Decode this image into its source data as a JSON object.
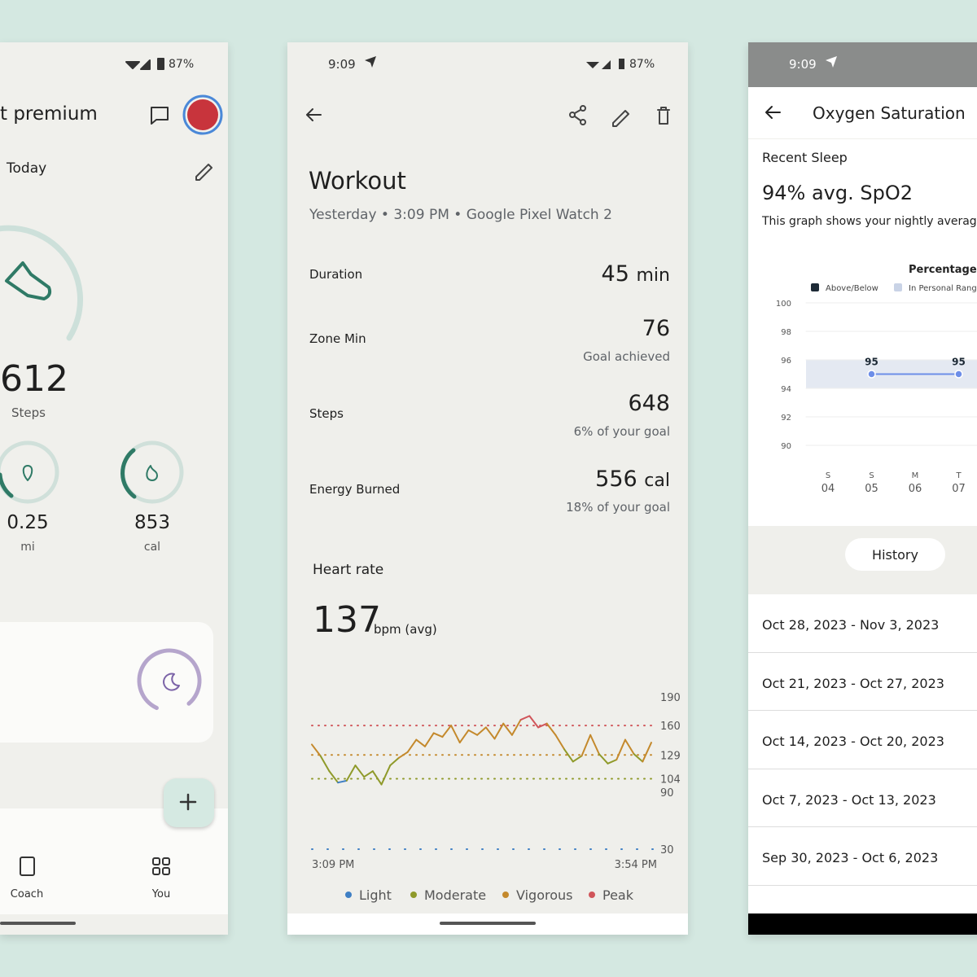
{
  "left": {
    "battery": "87%",
    "title": "t premium",
    "date_label": "Today",
    "steps": {
      "value": "612",
      "label": "Steps"
    },
    "distance": {
      "value": "0.25",
      "unit": "mi"
    },
    "calories": {
      "value": "853",
      "unit": "cal"
    },
    "nav": [
      "Coach",
      "You"
    ]
  },
  "workout": {
    "time": "9:09",
    "battery": "87%",
    "title": "Workout",
    "subtitle": "Yesterday • 3:09 PM • Google Pixel Watch 2",
    "metrics": [
      {
        "label": "Duration",
        "value": "45",
        "unit": "min"
      },
      {
        "label": "Zone Min",
        "value": "76",
        "note": "Goal achieved"
      },
      {
        "label": "Steps",
        "value": "648",
        "note": "6% of your goal"
      },
      {
        "label": "Energy Burned",
        "value": "556",
        "unit": "cal",
        "note": "18% of your goal"
      }
    ],
    "heart_rate": {
      "title": "Heart rate",
      "value": "137",
      "unit": "bpm (avg)"
    }
  },
  "oxygen": {
    "time": "9:09",
    "title": "Oxygen Saturation",
    "section": "Recent Sleep",
    "headline": "94% avg. SpO2",
    "description": "This graph shows your nightly average",
    "history_button": "History",
    "history": [
      "Oct 28, 2023 - Nov 3, 2023",
      "Oct 21, 2023 - Oct 27, 2023",
      "Oct 14, 2023 - Oct 20, 2023",
      "Oct 7, 2023 - Oct 13, 2023",
      "Sep 30, 2023 - Oct 6, 2023"
    ]
  },
  "chart_data": [
    {
      "type": "line",
      "ylim": [
        30,
        190
      ],
      "yticks": [
        190,
        160,
        129,
        104,
        90,
        30
      ],
      "x_labels": [
        "3:09 PM",
        "3:54 PM"
      ],
      "values": [
        140,
        128,
        112,
        100,
        102,
        118,
        106,
        112,
        98,
        118,
        126,
        132,
        145,
        138,
        152,
        148,
        160,
        142,
        155,
        150,
        158,
        146,
        162,
        150,
        166,
        170,
        158,
        162,
        150,
        135,
        122,
        128,
        150,
        130,
        120,
        124,
        145,
        130,
        122,
        142
      ],
      "zones": [
        {
          "name": "Light",
          "color": "#3f7fc4",
          "threshold": 30
        },
        {
          "name": "Moderate",
          "color": "#8f9a2a",
          "threshold": 104
        },
        {
          "name": "Vigorous",
          "color": "#c4892c",
          "threshold": 129
        },
        {
          "name": "Peak",
          "color": "#d0555a",
          "threshold": 160
        }
      ]
    },
    {
      "type": "line",
      "title": "Percentage (",
      "legend": [
        {
          "name": "Above/Below",
          "color": "#1d2a36"
        },
        {
          "name": "In Personal Range",
          "color": "#c9d3e6"
        }
      ],
      "categories": [
        "S",
        "S",
        "M",
        "T"
      ],
      "dates": [
        "04",
        "05",
        "06",
        "07"
      ],
      "ylim": [
        90,
        100
      ],
      "yticks": [
        100,
        98,
        96,
        94,
        92,
        90
      ],
      "personal_range": [
        94,
        96
      ],
      "x": [
        "05",
        "07"
      ],
      "values": [
        95,
        95
      ],
      "color": "#6d8ee8"
    }
  ]
}
